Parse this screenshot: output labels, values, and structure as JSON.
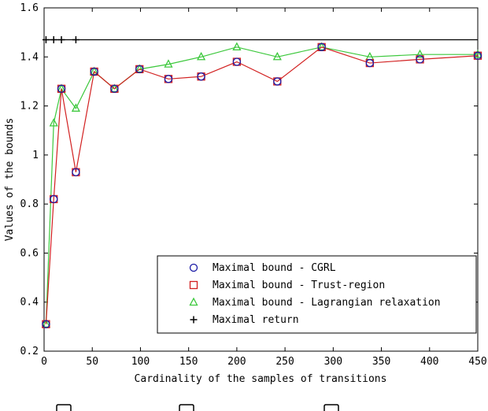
{
  "chart_data": {
    "type": "line",
    "title": "",
    "xlabel": "Cardinality of the samples of transitions",
    "ylabel": "Values of the bounds",
    "xlim": [
      0,
      450
    ],
    "ylim": [
      0.2,
      1.6
    ],
    "xticks": [
      0,
      50,
      100,
      150,
      200,
      250,
      300,
      350,
      400,
      450
    ],
    "yticks": [
      0.2,
      0.4,
      0.6,
      0.8,
      1,
      1.2,
      1.4,
      1.6
    ],
    "xtick_labels": [
      "0",
      "50",
      "100",
      "150",
      "200",
      "250",
      "300",
      "350",
      "400",
      "450"
    ],
    "ytick_labels": [
      "0.2",
      "0.4",
      "0.6",
      "0.8",
      "1",
      "1.2",
      "1.4",
      "1.6"
    ],
    "grid": false,
    "legend_position": "bottom-right",
    "series": [
      {
        "name": "Maximal bound - CGRL",
        "marker": "circle",
        "color": "#1a1aa6",
        "line": false,
        "x": [
          2,
          10,
          18,
          33,
          52,
          73,
          99,
          129,
          163,
          200,
          242,
          288,
          338,
          390,
          450
        ],
        "y": [
          0.31,
          0.82,
          1.27,
          0.93,
          1.34,
          1.27,
          1.35,
          1.31,
          1.32,
          1.38,
          1.3,
          1.44,
          1.375,
          1.39,
          1.405
        ]
      },
      {
        "name": "Maximal bound - Trust-region",
        "marker": "square",
        "color": "#d22020",
        "line": true,
        "x": [
          2,
          10,
          18,
          33,
          52,
          73,
          99,
          129,
          163,
          200,
          242,
          288,
          338,
          390,
          450
        ],
        "y": [
          0.31,
          0.82,
          1.27,
          0.93,
          1.34,
          1.27,
          1.35,
          1.31,
          1.32,
          1.38,
          1.3,
          1.44,
          1.375,
          1.39,
          1.405
        ]
      },
      {
        "name": "Maximal bound - Lagrangian relaxation",
        "marker": "triangle",
        "color": "#3cc83c",
        "line": true,
        "x": [
          2,
          10,
          18,
          33,
          52,
          73,
          99,
          129,
          163,
          200,
          242,
          288,
          338,
          390,
          450
        ],
        "y": [
          0.31,
          1.13,
          1.27,
          1.19,
          1.34,
          1.27,
          1.35,
          1.37,
          1.4,
          1.44,
          1.4,
          1.44,
          1.4,
          1.41,
          1.41
        ]
      },
      {
        "name": "Maximal return",
        "marker": "plus",
        "color": "#000000",
        "line": true,
        "x": [
          2,
          10,
          18,
          33,
          450
        ],
        "y": [
          1.47,
          1.47,
          1.47,
          1.47,
          1.47
        ]
      }
    ]
  },
  "bottom_strip": {
    "color": "#000000"
  }
}
